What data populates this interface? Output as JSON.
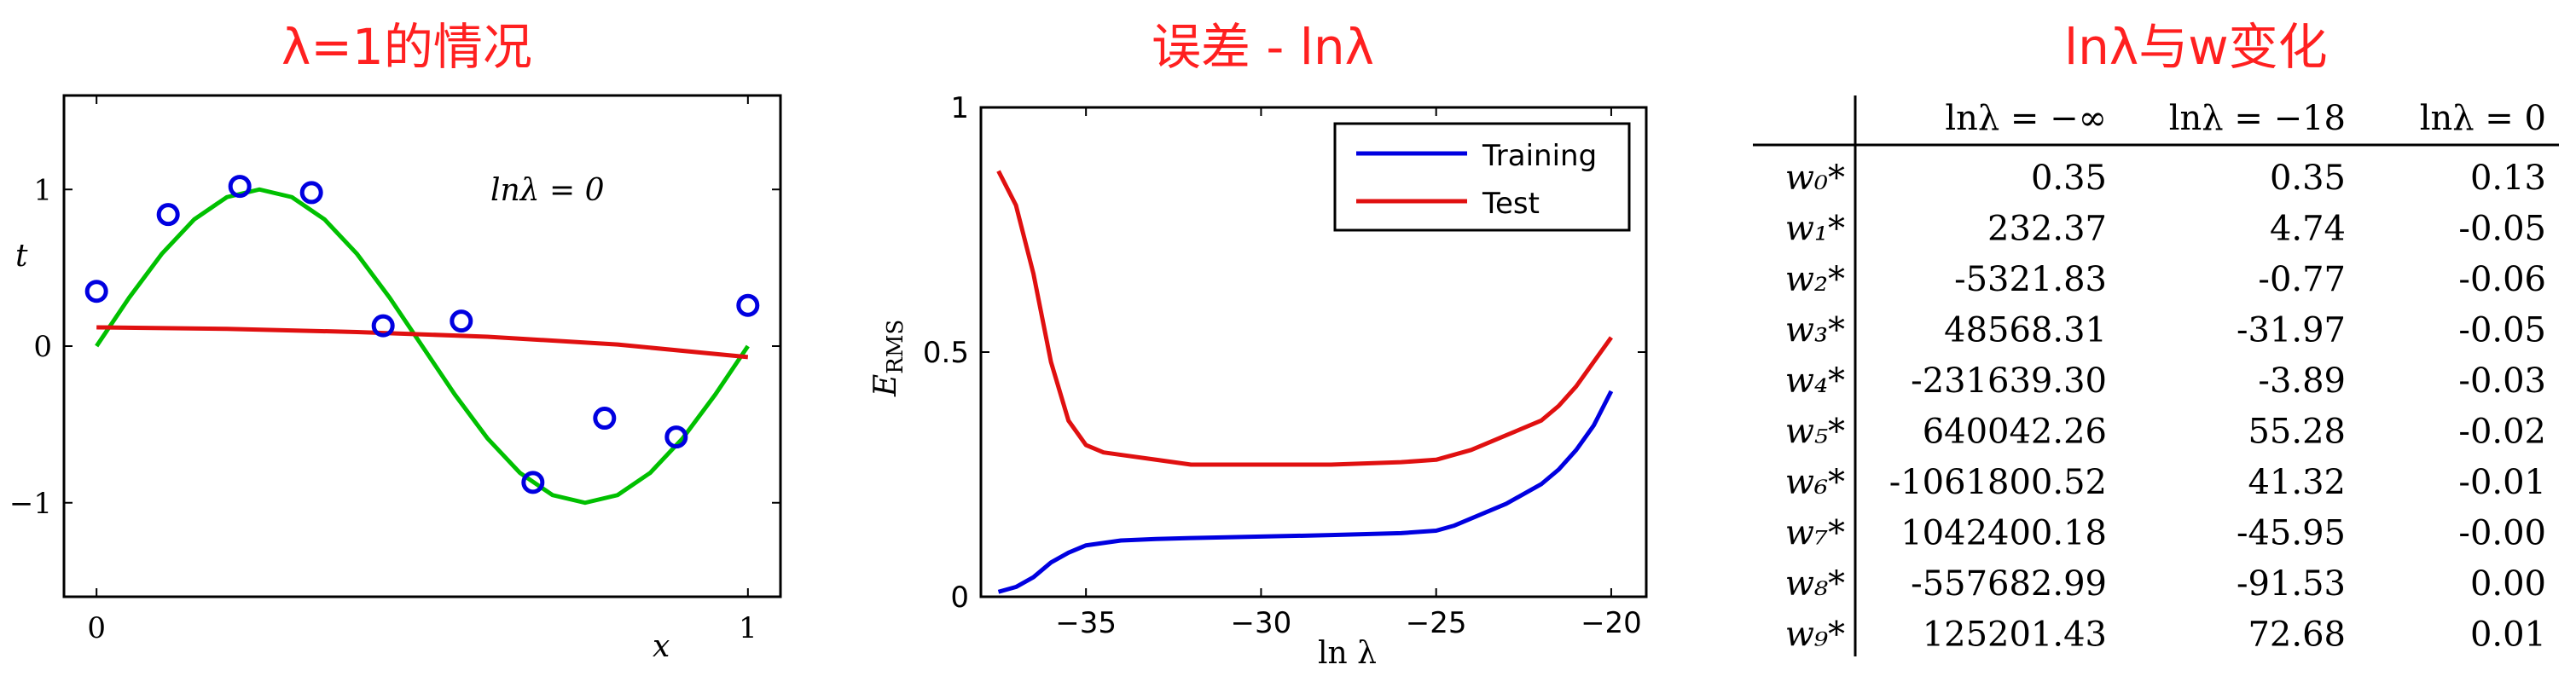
{
  "titles": {
    "left": "λ=1的情况",
    "middle": "误差 - lnλ",
    "right": "lnλ与w变化"
  },
  "colors": {
    "title": "#ff2020",
    "green": "#00c000",
    "red": "#e01010",
    "blue": "#0000e0"
  },
  "chart_data": [
    {
      "type": "scatter",
      "annotation": "lnλ = 0",
      "xlabel": "x",
      "ylabel": "t",
      "xlim": [
        -0.05,
        1.05
      ],
      "ylim": [
        -1.6,
        1.6
      ],
      "xticks": [
        {
          "v": 0,
          "label": "0"
        },
        {
          "v": 1,
          "label": "1"
        }
      ],
      "yticks": [
        {
          "v": 1,
          "label": "1"
        },
        {
          "v": 0,
          "label": "0"
        },
        {
          "v": -1,
          "label": "−1"
        }
      ],
      "points": [
        {
          "x": 0.0,
          "y": 0.35
        },
        {
          "x": 0.11,
          "y": 0.84
        },
        {
          "x": 0.22,
          "y": 1.02
        },
        {
          "x": 0.33,
          "y": 0.98
        },
        {
          "x": 0.44,
          "y": 0.13
        },
        {
          "x": 0.56,
          "y": 0.16
        },
        {
          "x": 0.67,
          "y": -0.87
        },
        {
          "x": 0.78,
          "y": -0.46
        },
        {
          "x": 0.89,
          "y": -0.58
        },
        {
          "x": 1.0,
          "y": 0.26
        }
      ],
      "series": [
        {
          "name": "",
          "color": "green",
          "x": [
            0,
            0.05,
            0.1,
            0.15,
            0.2,
            0.25,
            0.3,
            0.35,
            0.4,
            0.45,
            0.5,
            0.55,
            0.6,
            0.65,
            0.7,
            0.75,
            0.8,
            0.85,
            0.9,
            0.95,
            1.0
          ],
          "y": [
            0,
            0.309,
            0.588,
            0.809,
            0.951,
            1.0,
            0.951,
            0.809,
            0.588,
            0.309,
            0,
            -0.309,
            -0.588,
            -0.809,
            -0.951,
            -1.0,
            -0.951,
            -0.809,
            -0.588,
            -0.309,
            0
          ]
        },
        {
          "name": "",
          "color": "red",
          "x": [
            0,
            0.2,
            0.4,
            0.6,
            0.8,
            1.0
          ],
          "y": [
            0.12,
            0.11,
            0.09,
            0.06,
            0.01,
            -0.07
          ]
        }
      ]
    },
    {
      "type": "line",
      "xlabel": "ln λ",
      "ylabel": "E_RMS",
      "xlim": [
        -38,
        -19
      ],
      "ylim": [
        0,
        1
      ],
      "xticks": [
        -35,
        -30,
        -25,
        -20
      ],
      "xtick_labels": [
        "−35",
        "−30",
        "−25",
        "−20"
      ],
      "yticks": [
        0,
        0.5,
        1
      ],
      "ytick_labels": [
        "0",
        "0.5",
        "1"
      ],
      "legend": "top-right",
      "series": [
        {
          "name": "Training",
          "color": "blue",
          "x": [
            -37.5,
            -37,
            -36.5,
            -36,
            -35.5,
            -35,
            -34,
            -33,
            -32,
            -30,
            -28,
            -26,
            -25,
            -24.5,
            -24,
            -23,
            -22,
            -21.5,
            -21,
            -20.5,
            -20
          ],
          "y": [
            0.01,
            0.02,
            0.04,
            0.07,
            0.09,
            0.105,
            0.115,
            0.118,
            0.12,
            0.123,
            0.126,
            0.13,
            0.135,
            0.145,
            0.16,
            0.19,
            0.23,
            0.26,
            0.3,
            0.35,
            0.42
          ]
        },
        {
          "name": "Test",
          "color": "red",
          "x": [
            -37.5,
            -37,
            -36.5,
            -36,
            -35.5,
            -35,
            -34.5,
            -34,
            -33,
            -32,
            -30,
            -28,
            -26,
            -25,
            -24,
            -23,
            -22,
            -21.5,
            -21,
            -20.5,
            -20
          ],
          "y": [
            0.87,
            0.8,
            0.66,
            0.48,
            0.36,
            0.31,
            0.295,
            0.29,
            0.28,
            0.27,
            0.27,
            0.27,
            0.275,
            0.28,
            0.3,
            0.33,
            0.36,
            0.39,
            0.43,
            0.48,
            0.53
          ]
        }
      ]
    },
    {
      "type": "table",
      "columns": [
        "",
        "lnλ = −∞",
        "lnλ = −18",
        "lnλ = 0"
      ],
      "rows": [
        {
          "label": "w₀*",
          "values": [
            "0.35",
            "0.35",
            "0.13"
          ]
        },
        {
          "label": "w₁*",
          "values": [
            "232.37",
            "4.74",
            "-0.05"
          ]
        },
        {
          "label": "w₂*",
          "values": [
            "-5321.83",
            "-0.77",
            "-0.06"
          ]
        },
        {
          "label": "w₃*",
          "values": [
            "48568.31",
            "-31.97",
            "-0.05"
          ]
        },
        {
          "label": "w₄*",
          "values": [
            "-231639.30",
            "-3.89",
            "-0.03"
          ]
        },
        {
          "label": "w₅*",
          "values": [
            "640042.26",
            "55.28",
            "-0.02"
          ]
        },
        {
          "label": "w₆*",
          "values": [
            "-1061800.52",
            "41.32",
            "-0.01"
          ]
        },
        {
          "label": "w₇*",
          "values": [
            "1042400.18",
            "-45.95",
            "-0.00"
          ]
        },
        {
          "label": "w₈*",
          "values": [
            "-557682.99",
            "-91.53",
            "0.00"
          ]
        },
        {
          "label": "w₉*",
          "values": [
            "125201.43",
            "72.68",
            "0.01"
          ]
        }
      ]
    }
  ]
}
